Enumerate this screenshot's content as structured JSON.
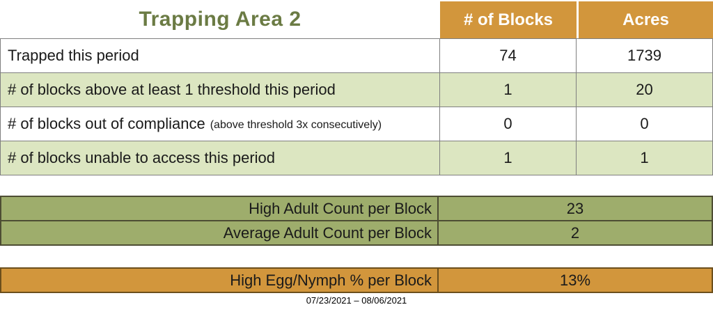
{
  "title": "Trapping Area 2",
  "summary_table": {
    "header": {
      "blocks": "# of Blocks",
      "acres": "Acres"
    },
    "rows": [
      {
        "label": "Trapped this period",
        "note": "",
        "blocks": "74",
        "acres": "1739"
      },
      {
        "label": "# of blocks above at least 1 threshold this period",
        "note": "",
        "blocks": "1",
        "acres": "20"
      },
      {
        "label": "# of blocks out of compliance",
        "note": "(above threshold 3x consecutively)",
        "blocks": "0",
        "acres": "0"
      },
      {
        "label": "# of blocks unable to access this period",
        "note": "",
        "blocks": "1",
        "acres": "1"
      }
    ]
  },
  "adult_table": {
    "rows": [
      {
        "label": "High Adult Count per Block",
        "value": "23"
      },
      {
        "label": "Average Adult Count per Block",
        "value": "2"
      }
    ]
  },
  "egg_table": {
    "label": "High Egg/Nymph % per Block",
    "value": "13%"
  },
  "date_range": "07/23/2021 – 08/06/2021",
  "colors": {
    "orange": "#D2963C",
    "light_green": "#DCE6C1",
    "olive": "#9EAD6C",
    "title_green": "#6B7B44",
    "border_gray": "#7f7f7f"
  }
}
